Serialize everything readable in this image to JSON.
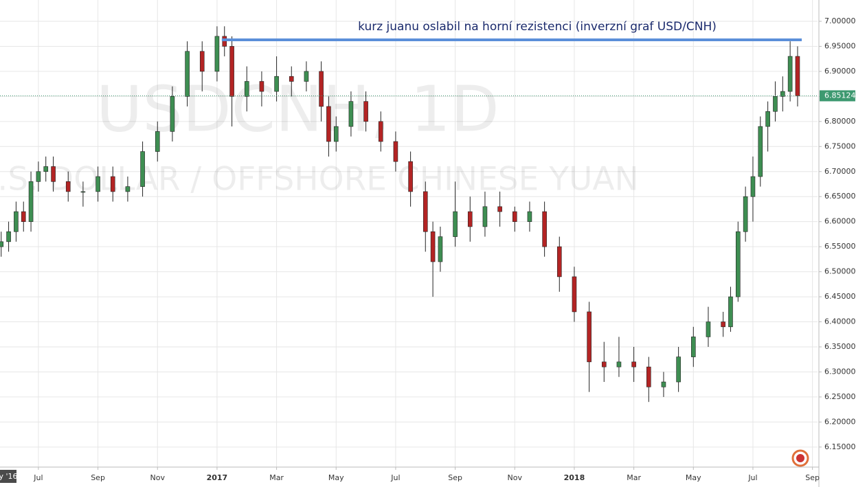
{
  "chart_data": {
    "type": "candlestick",
    "watermark": "USDCNH, 1D",
    "watermark_subtitle": "U.S. DOLLAR / OFFSHORE CHINESE YUAN",
    "annotation": "kurz juanu oslabil na horní rezistenci (inverzní graf USD/CNH)",
    "resistance": {
      "value": 6.963,
      "from": 12.16,
      "to": 31.64,
      "color": "#5b8fd9"
    },
    "last_price": {
      "value": 6.85124,
      "label": "6.85124",
      "color": "#3d9970"
    },
    "cursor_label": "y '16",
    "up_color": "#3e8e52",
    "down_color": "#b32424",
    "grid": true,
    "xlim": [
      4.71,
      32.17
    ],
    "ylim": [
      6.11,
      7.0425
    ],
    "xticks": [
      {
        "value": 6,
        "label": "Jul"
      },
      {
        "value": 8,
        "label": "Sep"
      },
      {
        "value": 10,
        "label": "Nov"
      },
      {
        "value": 12,
        "label": "2017"
      },
      {
        "value": 14,
        "label": "Mar"
      },
      {
        "value": 16,
        "label": "May"
      },
      {
        "value": 18,
        "label": "Jul"
      },
      {
        "value": 20,
        "label": "Sep"
      },
      {
        "value": 22,
        "label": "Nov"
      },
      {
        "value": 24,
        "label": "2018"
      },
      {
        "value": 26,
        "label": "Mar"
      },
      {
        "value": 28,
        "label": "May"
      },
      {
        "value": 30,
        "label": "Jul"
      },
      {
        "value": 32,
        "label": "Sep"
      }
    ],
    "yticks": [
      {
        "value": 7.0,
        "label": "7.00000"
      },
      {
        "value": 6.95,
        "label": "6.95000"
      },
      {
        "value": 6.9,
        "label": "6.90000"
      },
      {
        "value": 6.85,
        "label": "6.85000"
      },
      {
        "value": 6.8,
        "label": "6.80000"
      },
      {
        "value": 6.75,
        "label": "6.75000"
      },
      {
        "value": 6.7,
        "label": "6.70000"
      },
      {
        "value": 6.65,
        "label": "6.65000"
      },
      {
        "value": 6.6,
        "label": "6.60000"
      },
      {
        "value": 6.55,
        "label": "6.55000"
      },
      {
        "value": 6.5,
        "label": "6.50000"
      },
      {
        "value": 6.45,
        "label": "6.45000"
      },
      {
        "value": 6.4,
        "label": "6.40000"
      },
      {
        "value": 6.35,
        "label": "6.35000"
      },
      {
        "value": 6.3,
        "label": "6.30000"
      },
      {
        "value": 6.25,
        "label": "6.25000"
      },
      {
        "value": 6.2,
        "label": "6.20000"
      },
      {
        "value": 6.15,
        "label": "6.15000"
      }
    ],
    "x": [
      4.75,
      5,
      5.25,
      5.5,
      5.75,
      6,
      6.25,
      6.5,
      7,
      7.5,
      8,
      8.5,
      9,
      9.5,
      10,
      10.5,
      11,
      11.5,
      12,
      12.25,
      12.5,
      13,
      13.5,
      14,
      14.5,
      15,
      15.5,
      15.75,
      16,
      16.5,
      17,
      17.5,
      18,
      18.5,
      19,
      19.25,
      19.5,
      20,
      20.5,
      21,
      21.5,
      22,
      22.5,
      23,
      23.5,
      24,
      24.5,
      25,
      25.5,
      26,
      26.5,
      27,
      27.5,
      28,
      28.5,
      29,
      29.25,
      29.5,
      29.75,
      30,
      30.25,
      30.5,
      30.75,
      31,
      31.25,
      31.5
    ],
    "open": [
      6.55,
      6.56,
      6.58,
      6.62,
      6.6,
      6.68,
      6.7,
      6.71,
      6.68,
      6.66,
      6.66,
      6.69,
      6.66,
      6.67,
      6.74,
      6.78,
      6.85,
      6.94,
      6.9,
      6.97,
      6.95,
      6.85,
      6.88,
      6.86,
      6.89,
      6.88,
      6.9,
      6.83,
      6.76,
      6.79,
      6.84,
      6.8,
      6.76,
      6.72,
      6.66,
      6.58,
      6.52,
      6.57,
      6.62,
      6.59,
      6.63,
      6.62,
      6.6,
      6.62,
      6.55,
      6.49,
      6.42,
      6.32,
      6.31,
      6.32,
      6.31,
      6.27,
      6.28,
      6.33,
      6.37,
      6.4,
      6.39,
      6.45,
      6.58,
      6.65,
      6.69,
      6.79,
      6.82,
      6.85,
      6.86,
      6.93
    ],
    "high": [
      6.58,
      6.6,
      6.64,
      6.64,
      6.7,
      6.72,
      6.73,
      6.73,
      6.7,
      6.68,
      6.71,
      6.71,
      6.69,
      6.76,
      6.8,
      6.87,
      6.96,
      6.96,
      6.99,
      6.99,
      6.97,
      6.91,
      6.9,
      6.93,
      6.91,
      6.92,
      6.92,
      6.85,
      6.81,
      6.86,
      6.86,
      6.82,
      6.78,
      6.74,
      6.68,
      6.6,
      6.59,
      6.68,
      6.65,
      6.66,
      6.66,
      6.63,
      6.64,
      6.64,
      6.57,
      6.51,
      6.44,
      6.36,
      6.37,
      6.35,
      6.33,
      6.3,
      6.35,
      6.39,
      6.43,
      6.42,
      6.47,
      6.6,
      6.67,
      6.73,
      6.81,
      6.84,
      6.88,
      6.89,
      6.96,
      6.95
    ],
    "low": [
      6.53,
      6.54,
      6.56,
      6.58,
      6.58,
      6.66,
      6.68,
      6.66,
      6.64,
      6.63,
      6.64,
      6.64,
      6.64,
      6.65,
      6.72,
      6.76,
      6.83,
      6.86,
      6.88,
      6.93,
      6.79,
      6.82,
      6.83,
      6.84,
      6.85,
      6.86,
      6.8,
      6.73,
      6.74,
      6.77,
      6.78,
      6.74,
      6.7,
      6.63,
      6.54,
      6.45,
      6.5,
      6.55,
      6.56,
      6.57,
      6.59,
      6.58,
      6.58,
      6.53,
      6.46,
      6.4,
      6.26,
      6.28,
      6.29,
      6.28,
      6.24,
      6.25,
      6.26,
      6.31,
      6.35,
      6.37,
      6.38,
      6.44,
      6.56,
      6.6,
      6.67,
      6.74,
      6.8,
      6.82,
      6.84,
      6.83
    ],
    "close": [
      6.56,
      6.58,
      6.62,
      6.6,
      6.68,
      6.7,
      6.71,
      6.68,
      6.66,
      6.66,
      6.69,
      6.66,
      6.67,
      6.74,
      6.78,
      6.85,
      6.94,
      6.9,
      6.97,
      6.95,
      6.85,
      6.88,
      6.86,
      6.89,
      6.88,
      6.9,
      6.83,
      6.76,
      6.79,
      6.84,
      6.8,
      6.76,
      6.72,
      6.66,
      6.58,
      6.52,
      6.57,
      6.62,
      6.59,
      6.63,
      6.62,
      6.6,
      6.62,
      6.55,
      6.49,
      6.42,
      6.32,
      6.31,
      6.32,
      6.31,
      6.27,
      6.28,
      6.33,
      6.37,
      6.4,
      6.39,
      6.45,
      6.58,
      6.65,
      6.69,
      6.79,
      6.82,
      6.85,
      6.86,
      6.93,
      6.85124
    ]
  }
}
